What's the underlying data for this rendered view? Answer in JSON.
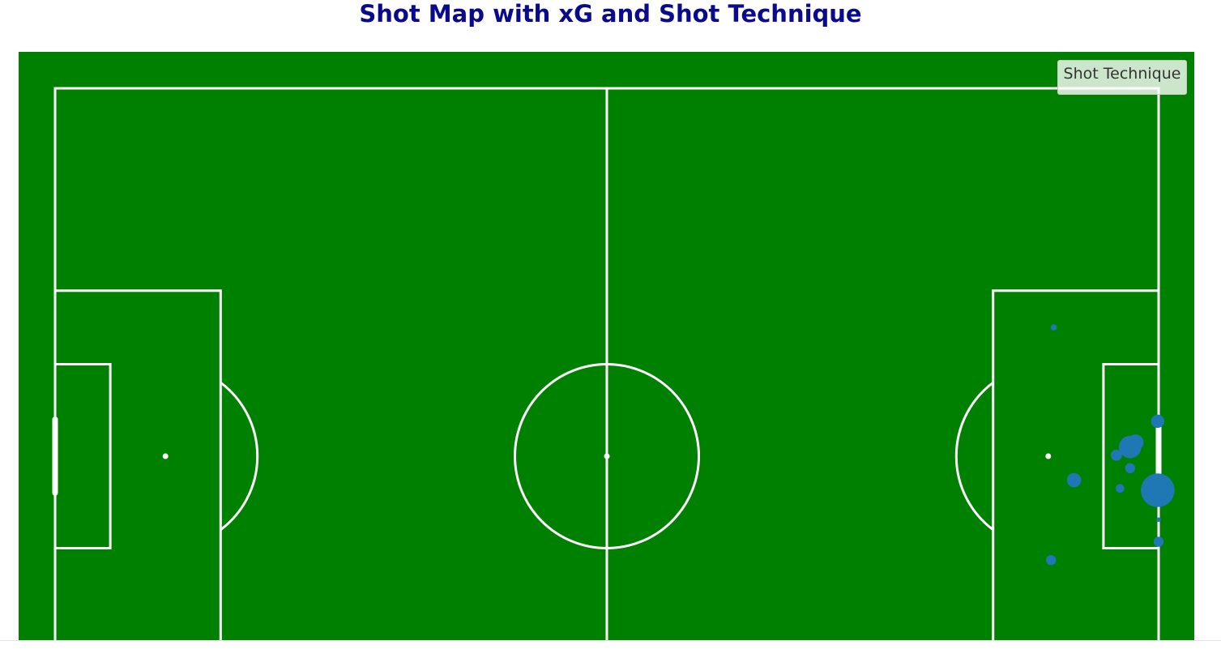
{
  "title": "Shot Map with xG and Shot Technique",
  "colors": {
    "pitch": "#008000",
    "lines": "#ffffff",
    "title": "#0a0a8c",
    "shots": "#1f77b4"
  },
  "chart_data": {
    "type": "scatter",
    "title": "Shot Map with xG and Shot Technique",
    "pitch_units": {
      "length": 120,
      "width": 80
    },
    "xlim": [
      -4,
      124
    ],
    "ylim": [
      0,
      64
    ],
    "legend": {
      "title": "Shot Technique",
      "placement": "top-right"
    },
    "grid": false,
    "series": [
      {
        "marker_size_encodes": "xG",
        "points": [
          {
            "x": 108.6,
            "y": 54.0,
            "xG": 0.015
          },
          {
            "x": 119.9,
            "y": 43.8,
            "xG": 0.07
          },
          {
            "x": 117.5,
            "y": 41.5,
            "xG": 0.1
          },
          {
            "x": 116.9,
            "y": 41.0,
            "xG": 0.2
          },
          {
            "x": 116.6,
            "y": 40.8,
            "xG": 0.09
          },
          {
            "x": 115.4,
            "y": 40.1,
            "xG": 0.05
          },
          {
            "x": 116.9,
            "y": 38.7,
            "xG": 0.04
          },
          {
            "x": 110.8,
            "y": 37.4,
            "xG": 0.08
          },
          {
            "x": 115.8,
            "y": 36.5,
            "xG": 0.03
          },
          {
            "x": 119.9,
            "y": 36.3,
            "xG": 0.45
          },
          {
            "x": 120.0,
            "y": 33.1,
            "xG": 0.008
          },
          {
            "x": 120.0,
            "y": 30.7,
            "xG": 0.04
          },
          {
            "x": 108.3,
            "y": 28.7,
            "xG": 0.04
          }
        ]
      }
    ]
  }
}
